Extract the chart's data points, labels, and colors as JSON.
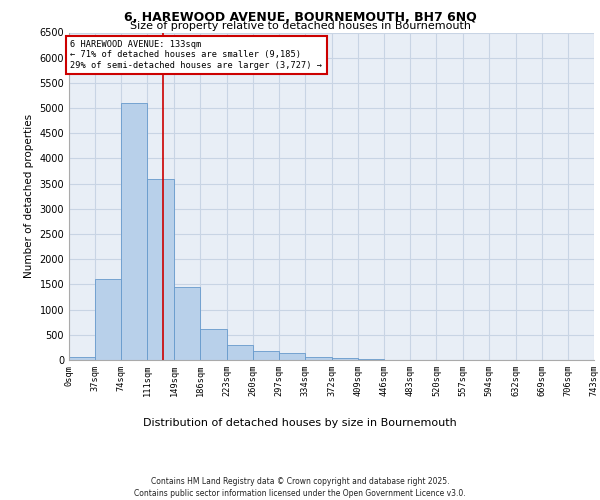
{
  "title_line1": "6, HAREWOOD AVENUE, BOURNEMOUTH, BH7 6NQ",
  "title_line2": "Size of property relative to detached houses in Bournemouth",
  "xlabel": "Distribution of detached houses by size in Bournemouth",
  "ylabel": "Number of detached properties",
  "bar_edges": [
    0,
    37,
    74,
    111,
    149,
    186,
    223,
    260,
    297,
    334,
    372,
    409,
    446,
    483,
    520,
    557,
    594,
    632,
    669,
    706,
    743
  ],
  "bar_heights": [
    60,
    1600,
    5100,
    3600,
    1450,
    620,
    290,
    170,
    140,
    60,
    30,
    10,
    0,
    0,
    0,
    0,
    0,
    0,
    0,
    0
  ],
  "bar_color": "#b8d0ea",
  "bar_edge_color": "#6699cc",
  "grid_color": "#c8d4e4",
  "bg_color": "#e8eef6",
  "property_size": 133,
  "annotation_title": "6 HAREWOOD AVENUE: 133sqm",
  "annotation_line2": "← 71% of detached houses are smaller (9,185)",
  "annotation_line3": "29% of semi-detached houses are larger (3,727) →",
  "vline_color": "#cc0000",
  "annotation_box_color": "#cc0000",
  "ylim": [
    0,
    6500
  ],
  "yticks": [
    0,
    500,
    1000,
    1500,
    2000,
    2500,
    3000,
    3500,
    4000,
    4500,
    5000,
    5500,
    6000,
    6500
  ],
  "footer_line1": "Contains HM Land Registry data © Crown copyright and database right 2025.",
  "footer_line2": "Contains public sector information licensed under the Open Government Licence v3.0."
}
